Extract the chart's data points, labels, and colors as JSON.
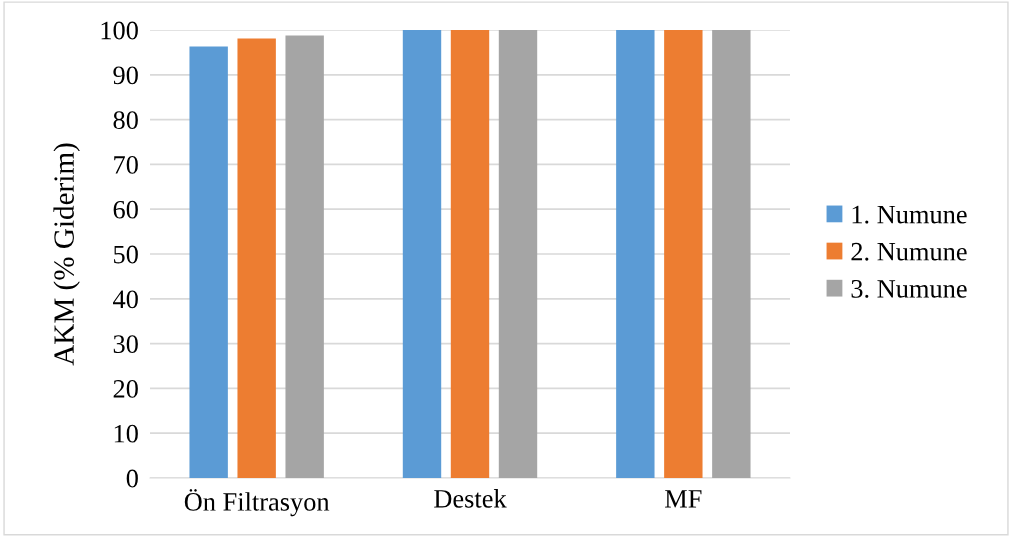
{
  "chart_data": {
    "type": "bar",
    "ylabel": "AKM (% Giderim)",
    "categories": [
      "Ön Filtrasyon",
      "Destek",
      "MF"
    ],
    "series": [
      {
        "name": "1. Numune",
        "color": "#5b9bd5",
        "values": [
          96.3,
          100,
          100
        ]
      },
      {
        "name": "2. Numune",
        "color": "#ed7d31",
        "values": [
          98.1,
          100,
          100
        ]
      },
      {
        "name": "3. Numune",
        "color": "#a5a5a5",
        "values": [
          98.8,
          100,
          100
        ]
      }
    ],
    "ylim": [
      0,
      100
    ],
    "yticks": [
      0,
      10,
      20,
      30,
      40,
      50,
      60,
      70,
      80,
      90,
      100
    ],
    "grid": "y",
    "legend": "right"
  }
}
